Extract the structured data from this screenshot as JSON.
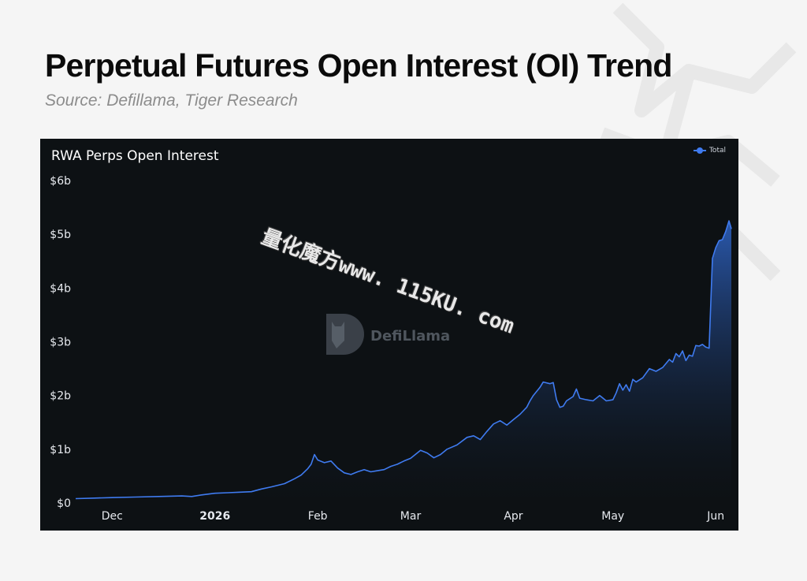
{
  "header": {
    "title": "Perpetual Futures Open Interest (OI) Trend",
    "subtitle": "Source: Defillama, Tiger Research"
  },
  "watermark": {
    "text": "量化魔方www. 115KU. com"
  },
  "branding": {
    "defillama_text": "DefiLlama",
    "icon": "llama-logo-icon"
  },
  "colors": {
    "line": "#3f7bf0",
    "panel": "#0d1114",
    "background": "#f5f5f5"
  },
  "chart_data": {
    "type": "area",
    "title": "RWA Perps Open Interest",
    "legend": {
      "position": "top-right",
      "entries": [
        "Total"
      ]
    },
    "yaxis": {
      "ticks": [
        "$0",
        "$1b",
        "$2b",
        "$3b",
        "$4b",
        "$5b",
        "$6b"
      ],
      "range": [
        0,
        6
      ],
      "unit": "billion USD"
    },
    "xaxis": {
      "range": [
        "2025-11-20",
        "2026-06-05"
      ],
      "ticks": [
        "Dec",
        "2026",
        "Feb",
        "Mar",
        "Apr",
        "May",
        "Jun"
      ]
    },
    "grid": false,
    "series": [
      {
        "name": "Total",
        "points": [
          [
            "2025-11-20",
            0.08
          ],
          [
            "2025-11-25",
            0.09
          ],
          [
            "2025-12-01",
            0.1
          ],
          [
            "2025-12-08",
            0.11
          ],
          [
            "2025-12-15",
            0.12
          ],
          [
            "2025-12-22",
            0.13
          ],
          [
            "2025-12-25",
            0.12
          ],
          [
            "2025-12-28",
            0.15
          ],
          [
            "2026-01-01",
            0.18
          ],
          [
            "2026-01-05",
            0.19
          ],
          [
            "2026-01-08",
            0.2
          ],
          [
            "2026-01-12",
            0.21
          ],
          [
            "2026-01-15",
            0.26
          ],
          [
            "2026-01-18",
            0.3
          ],
          [
            "2026-01-22",
            0.36
          ],
          [
            "2026-01-25",
            0.45
          ],
          [
            "2026-01-27",
            0.52
          ],
          [
            "2026-01-29",
            0.64
          ],
          [
            "2026-01-30",
            0.72
          ],
          [
            "2026-01-31",
            0.9
          ],
          [
            "2026-02-01",
            0.8
          ],
          [
            "2026-02-03",
            0.75
          ],
          [
            "2026-02-05",
            0.78
          ],
          [
            "2026-02-07",
            0.65
          ],
          [
            "2026-02-09",
            0.56
          ],
          [
            "2026-02-11",
            0.53
          ],
          [
            "2026-02-13",
            0.58
          ],
          [
            "2026-02-15",
            0.62
          ],
          [
            "2026-02-17",
            0.58
          ],
          [
            "2026-02-19",
            0.6
          ],
          [
            "2026-02-21",
            0.62
          ],
          [
            "2026-02-23",
            0.68
          ],
          [
            "2026-02-25",
            0.72
          ],
          [
            "2026-02-27",
            0.78
          ],
          [
            "2026-03-01",
            0.83
          ],
          [
            "2026-03-04",
            0.98
          ],
          [
            "2026-03-06",
            0.93
          ],
          [
            "2026-03-08",
            0.84
          ],
          [
            "2026-03-10",
            0.9
          ],
          [
            "2026-03-12",
            1.0
          ],
          [
            "2026-03-15",
            1.08
          ],
          [
            "2026-03-18",
            1.22
          ],
          [
            "2026-03-20",
            1.25
          ],
          [
            "2026-03-22",
            1.18
          ],
          [
            "2026-03-24",
            1.33
          ],
          [
            "2026-03-26",
            1.47
          ],
          [
            "2026-03-28",
            1.53
          ],
          [
            "2026-03-30",
            1.45
          ],
          [
            "2026-04-01",
            1.55
          ],
          [
            "2026-04-03",
            1.65
          ],
          [
            "2026-04-05",
            1.78
          ],
          [
            "2026-04-06",
            1.9
          ],
          [
            "2026-04-07",
            2.0
          ],
          [
            "2026-04-09",
            2.15
          ],
          [
            "2026-04-10",
            2.25
          ],
          [
            "2026-04-12",
            2.22
          ],
          [
            "2026-04-13",
            2.24
          ],
          [
            "2026-04-14",
            1.92
          ],
          [
            "2026-04-15",
            1.78
          ],
          [
            "2026-04-16",
            1.8
          ],
          [
            "2026-04-17",
            1.9
          ],
          [
            "2026-04-19",
            1.98
          ],
          [
            "2026-04-20",
            2.12
          ],
          [
            "2026-04-21",
            1.95
          ],
          [
            "2026-04-23",
            1.92
          ],
          [
            "2026-04-25",
            1.9
          ],
          [
            "2026-04-27",
            2.0
          ],
          [
            "2026-04-29",
            1.9
          ],
          [
            "2026-05-01",
            1.92
          ],
          [
            "2026-05-02",
            2.05
          ],
          [
            "2026-05-03",
            2.22
          ],
          [
            "2026-05-04",
            2.1
          ],
          [
            "2026-05-05",
            2.2
          ],
          [
            "2026-05-06",
            2.08
          ],
          [
            "2026-05-07",
            2.3
          ],
          [
            "2026-05-08",
            2.25
          ],
          [
            "2026-05-10",
            2.33
          ],
          [
            "2026-05-12",
            2.5
          ],
          [
            "2026-05-14",
            2.45
          ],
          [
            "2026-05-16",
            2.52
          ],
          [
            "2026-05-18",
            2.67
          ],
          [
            "2026-05-19",
            2.62
          ],
          [
            "2026-05-20",
            2.78
          ],
          [
            "2026-05-21",
            2.72
          ],
          [
            "2026-05-22",
            2.83
          ],
          [
            "2026-05-23",
            2.65
          ],
          [
            "2026-05-24",
            2.75
          ],
          [
            "2026-05-25",
            2.73
          ],
          [
            "2026-05-26",
            2.93
          ],
          [
            "2026-05-27",
            2.92
          ],
          [
            "2026-05-28",
            2.95
          ],
          [
            "2026-05-29",
            2.9
          ],
          [
            "2026-05-30",
            2.88
          ],
          [
            "2026-05-31",
            4.55
          ],
          [
            "2026-06-01",
            4.75
          ],
          [
            "2026-06-02",
            4.88
          ],
          [
            "2026-06-03",
            4.9
          ],
          [
            "2026-06-04",
            5.05
          ],
          [
            "2026-06-05",
            5.25
          ],
          [
            "2026-06-06",
            5.1
          ]
        ]
      }
    ]
  }
}
